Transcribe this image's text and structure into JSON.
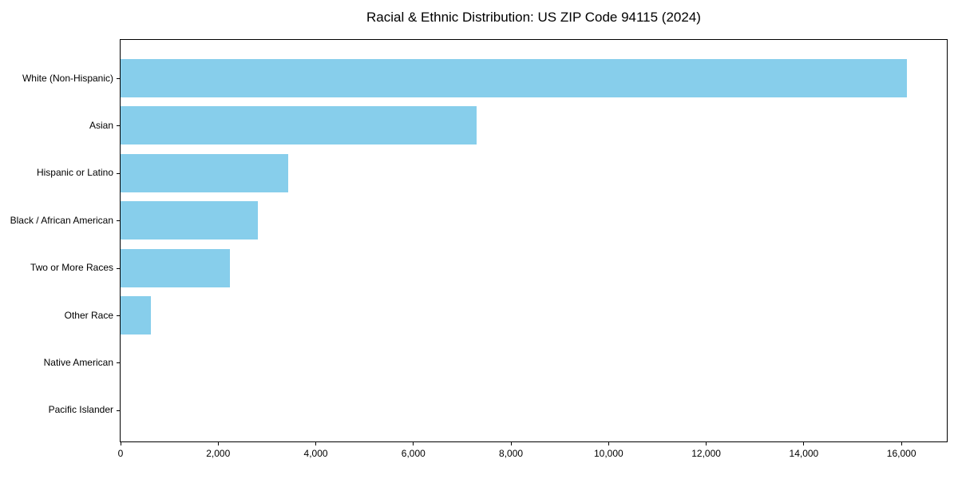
{
  "chart_data": {
    "type": "bar",
    "orientation": "horizontal",
    "title": "Racial & Ethnic Distribution: US ZIP Code 94115 (2024)",
    "categories": [
      "White (Non-Hispanic)",
      "Asian",
      "Hispanic or Latino",
      "Black / African American",
      "Two or More Races",
      "Other Race",
      "Native American",
      "Pacific Islander"
    ],
    "values": [
      16120,
      7290,
      3440,
      2810,
      2240,
      620,
      0,
      0
    ],
    "xlabel": "",
    "ylabel": "",
    "xlim": [
      0,
      16930
    ],
    "xticks": [
      {
        "value": 0,
        "label": "0"
      },
      {
        "value": 2000,
        "label": "2,000"
      },
      {
        "value": 4000,
        "label": "4,000"
      },
      {
        "value": 6000,
        "label": "6,000"
      },
      {
        "value": 8000,
        "label": "8,000"
      },
      {
        "value": 10000,
        "label": "10,000"
      },
      {
        "value": 12000,
        "label": "12,000"
      },
      {
        "value": 14000,
        "label": "14,000"
      },
      {
        "value": 16000,
        "label": "16,000"
      }
    ],
    "bar_color": "#87CEEB",
    "axis_color": "#000000",
    "text_color": "#000000",
    "background_color": "#FFFFFF",
    "grid": false,
    "legend": "none"
  }
}
